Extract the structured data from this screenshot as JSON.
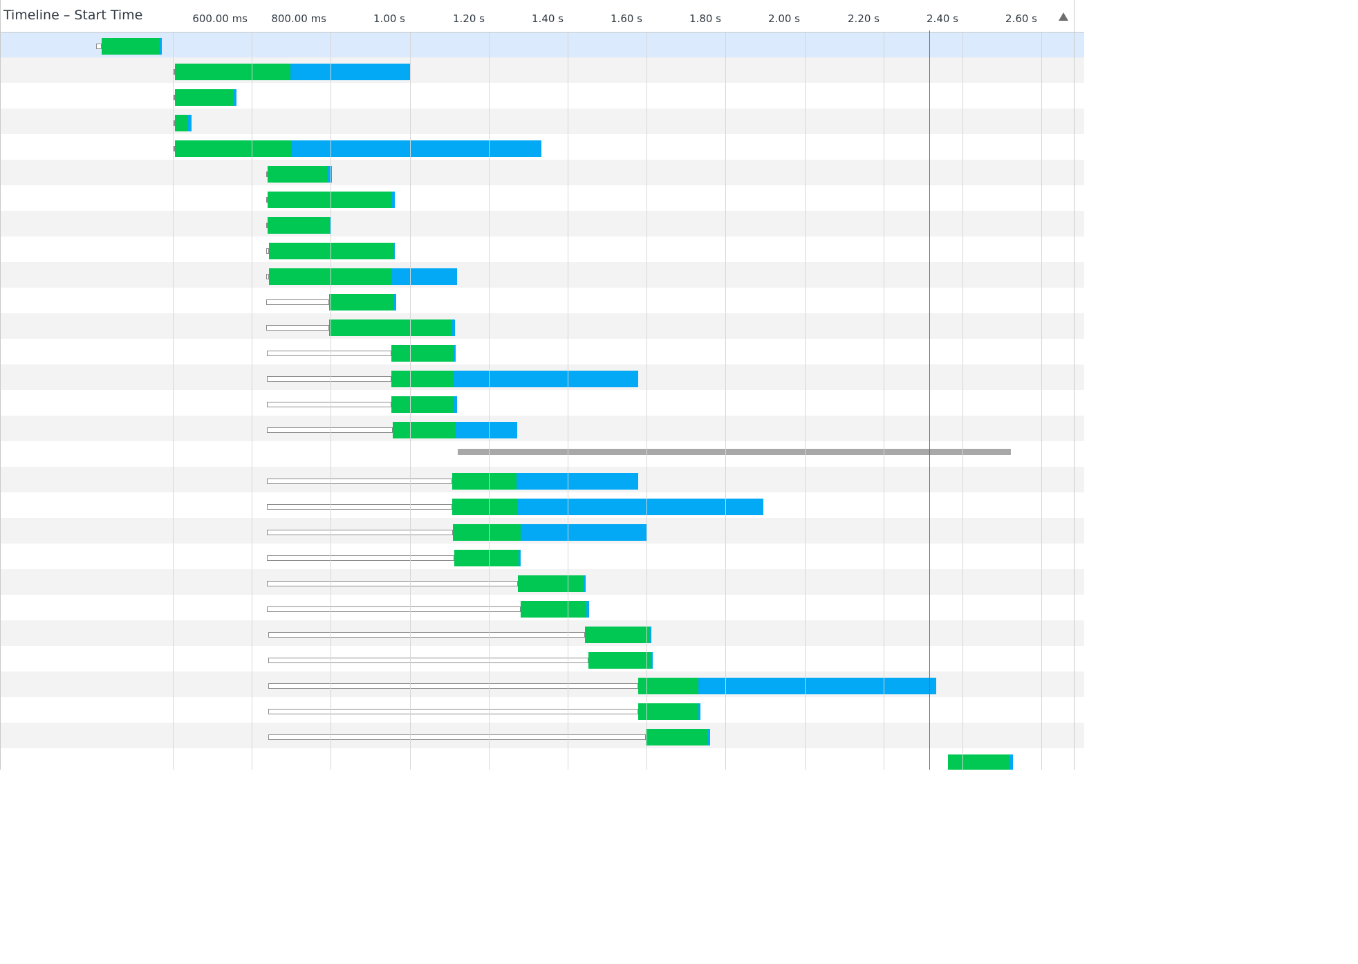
{
  "header": {
    "title": "Timeline – Start Time",
    "sort_icon": "triangle-up-icon"
  },
  "axis": {
    "ticks": [
      {
        "label": "600.00 ms",
        "seconds": 0.6
      },
      {
        "label": "800.00 ms",
        "seconds": 0.8
      },
      {
        "label": "1.00 s",
        "seconds": 1.0
      },
      {
        "label": "1.20 s",
        "seconds": 1.2
      },
      {
        "label": "1.40 s",
        "seconds": 1.4
      },
      {
        "label": "1.60 s",
        "seconds": 1.6
      },
      {
        "label": "1.80 s",
        "seconds": 1.8
      },
      {
        "label": "2.00 s",
        "seconds": 2.0
      },
      {
        "label": "2.20 s",
        "seconds": 2.2
      },
      {
        "label": "2.40 s",
        "seconds": 2.4
      },
      {
        "label": "2.60 s",
        "seconds": 2.6
      }
    ],
    "now_marker_seconds": 2.516
  },
  "colors": {
    "waiting": "#00c853",
    "receiving": "#03a9f4",
    "stalled_border": "#8a8a8a",
    "unfinished": "#a8a8a8",
    "now_line": "#ff2e2e",
    "row_selected": "#dbeafc",
    "row_alt": "#f3f3f3"
  },
  "rows": [
    {
      "selected": true,
      "queued": [
        0.405,
        0.419
      ],
      "waiting": [
        0.419,
        0.565
      ],
      "receiving": [
        0.565,
        0.572
      ]
    },
    {
      "queued": [
        0.602,
        0.605
      ],
      "waiting": [
        0.605,
        0.898
      ],
      "receiving": [
        0.898,
        1.203
      ]
    },
    {
      "queued": [
        0.602,
        0.605
      ],
      "waiting": [
        0.605,
        0.752
      ],
      "receiving": [
        0.752,
        0.762
      ]
    },
    {
      "queued": [
        0.602,
        0.605
      ],
      "waiting": [
        0.605,
        0.639
      ],
      "receiving": [
        0.639,
        0.648
      ]
    },
    {
      "queued": [
        0.602,
        0.605
      ],
      "waiting": [
        0.605,
        0.902
      ],
      "receiving": [
        0.902,
        1.533
      ]
    },
    {
      "queued": [
        0.837,
        0.84
      ],
      "waiting": [
        0.84,
        0.993
      ],
      "receiving": [
        0.993,
        1.002
      ]
    },
    {
      "queued": [
        0.837,
        0.84
      ],
      "waiting": [
        0.84,
        1.156
      ],
      "receiving": [
        1.156,
        1.163
      ]
    },
    {
      "queued": [
        0.837,
        0.84
      ],
      "waiting": [
        0.84,
        0.996
      ],
      "receiving": [
        0.996,
        0.999
      ]
    },
    {
      "queued": [
        0.837,
        0.844
      ],
      "waiting": [
        0.844,
        1.158
      ],
      "receiving": [
        1.158,
        1.163
      ]
    },
    {
      "queued": [
        0.837,
        0.844
      ],
      "waiting": [
        0.844,
        1.153
      ],
      "receiving": [
        1.153,
        1.32
      ]
    },
    {
      "queued": [
        0.837,
        0.995
      ],
      "waiting": [
        0.995,
        1.16
      ],
      "receiving": [
        1.16,
        1.166
      ]
    },
    {
      "queued": [
        0.837,
        0.995
      ],
      "waiting": [
        0.995,
        1.307
      ],
      "receiving": [
        1.307,
        1.314
      ]
    },
    {
      "queued": [
        0.839,
        1.154
      ],
      "waiting": [
        1.154,
        1.309
      ],
      "receiving": [
        1.309,
        1.317
      ]
    },
    {
      "queued": [
        0.839,
        1.154
      ],
      "waiting": [
        1.154,
        1.31
      ],
      "receiving": [
        1.31,
        1.779
      ]
    },
    {
      "queued": [
        0.839,
        1.154
      ],
      "waiting": [
        1.154,
        1.311
      ],
      "receiving": [
        1.311,
        1.319
      ]
    },
    {
      "queued": [
        0.839,
        1.157
      ],
      "waiting": [
        1.157,
        1.315
      ],
      "receiving": [
        1.315,
        1.473
      ]
    },
    {
      "unfinished": [
        1.322,
        2.723
      ]
    },
    {
      "queued": [
        0.839,
        1.307
      ],
      "waiting": [
        1.307,
        1.47
      ],
      "receiving": [
        1.47,
        1.778
      ]
    },
    {
      "queued": [
        0.839,
        1.307
      ],
      "waiting": [
        1.307,
        1.473
      ],
      "receiving": [
        1.473,
        2.095
      ]
    },
    {
      "queued": [
        0.839,
        1.31
      ],
      "waiting": [
        1.31,
        1.481
      ],
      "receiving": [
        1.481,
        1.799
      ]
    },
    {
      "queued": [
        0.839,
        1.313
      ],
      "waiting": [
        1.313,
        1.475
      ],
      "receiving": [
        1.475,
        1.481
      ]
    },
    {
      "queued": [
        0.839,
        1.474
      ],
      "waiting": [
        1.474,
        1.639
      ],
      "receiving": [
        1.639,
        1.646
      ]
    },
    {
      "queued": [
        0.839,
        1.481
      ],
      "waiting": [
        1.481,
        1.648
      ],
      "receiving": [
        1.648,
        1.655
      ]
    },
    {
      "queued": [
        0.842,
        1.644
      ],
      "waiting": [
        1.644,
        1.806
      ],
      "receiving": [
        1.806,
        1.812
      ]
    },
    {
      "queued": [
        0.842,
        1.652
      ],
      "waiting": [
        1.652,
        1.811
      ],
      "receiving": [
        1.811,
        1.816
      ]
    },
    {
      "queued": [
        0.842,
        1.778
      ],
      "waiting": [
        1.778,
        1.931
      ],
      "receiving": [
        1.931,
        2.534
      ]
    },
    {
      "queued": [
        0.842,
        1.778
      ],
      "waiting": [
        1.778,
        1.931
      ],
      "receiving": [
        1.931,
        1.936
      ]
    },
    {
      "queued": [
        0.842,
        1.798
      ],
      "waiting": [
        1.798,
        1.956
      ],
      "receiving": [
        1.956,
        1.96
      ]
    },
    {
      "waiting": [
        2.563,
        2.717
      ],
      "receiving": [
        2.717,
        2.728
      ]
    }
  ]
}
